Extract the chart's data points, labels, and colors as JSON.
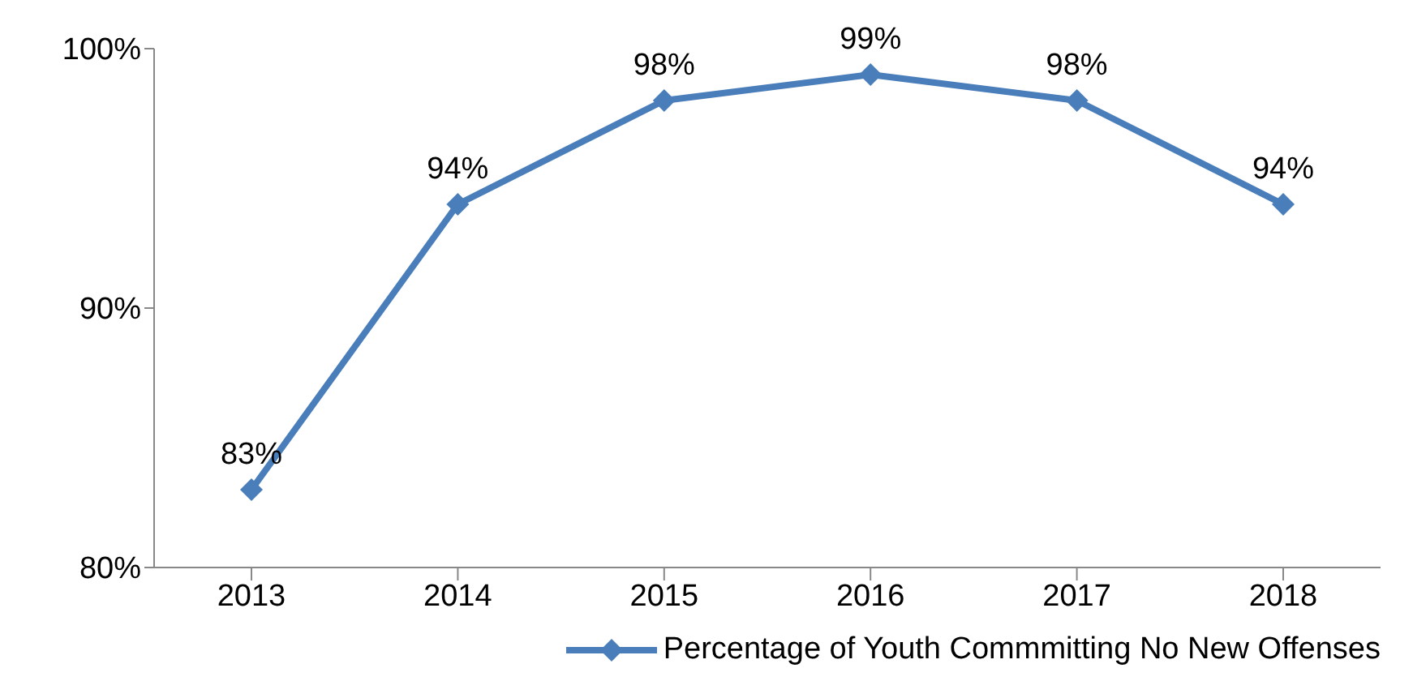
{
  "chart_data": {
    "type": "line",
    "categories": [
      "2013",
      "2014",
      "2015",
      "2016",
      "2017",
      "2018"
    ],
    "series": [
      {
        "name": "Percentage of Youth Commmitting No New Offenses",
        "color": "#4a7ebb",
        "values": [
          83,
          94,
          98,
          99,
          98,
          94
        ],
        "value_labels": [
          "83%",
          "94%",
          "98%",
          "99%",
          "98%",
          "94%"
        ]
      }
    ],
    "ylim": [
      80,
      100
    ],
    "yticks": [
      {
        "value": 80,
        "label": "80%"
      },
      {
        "value": 90,
        "label": "90%"
      },
      {
        "value": 100,
        "label": "100%"
      }
    ],
    "marker": "diamond",
    "line_style": "solid",
    "legend": "bottom right"
  }
}
